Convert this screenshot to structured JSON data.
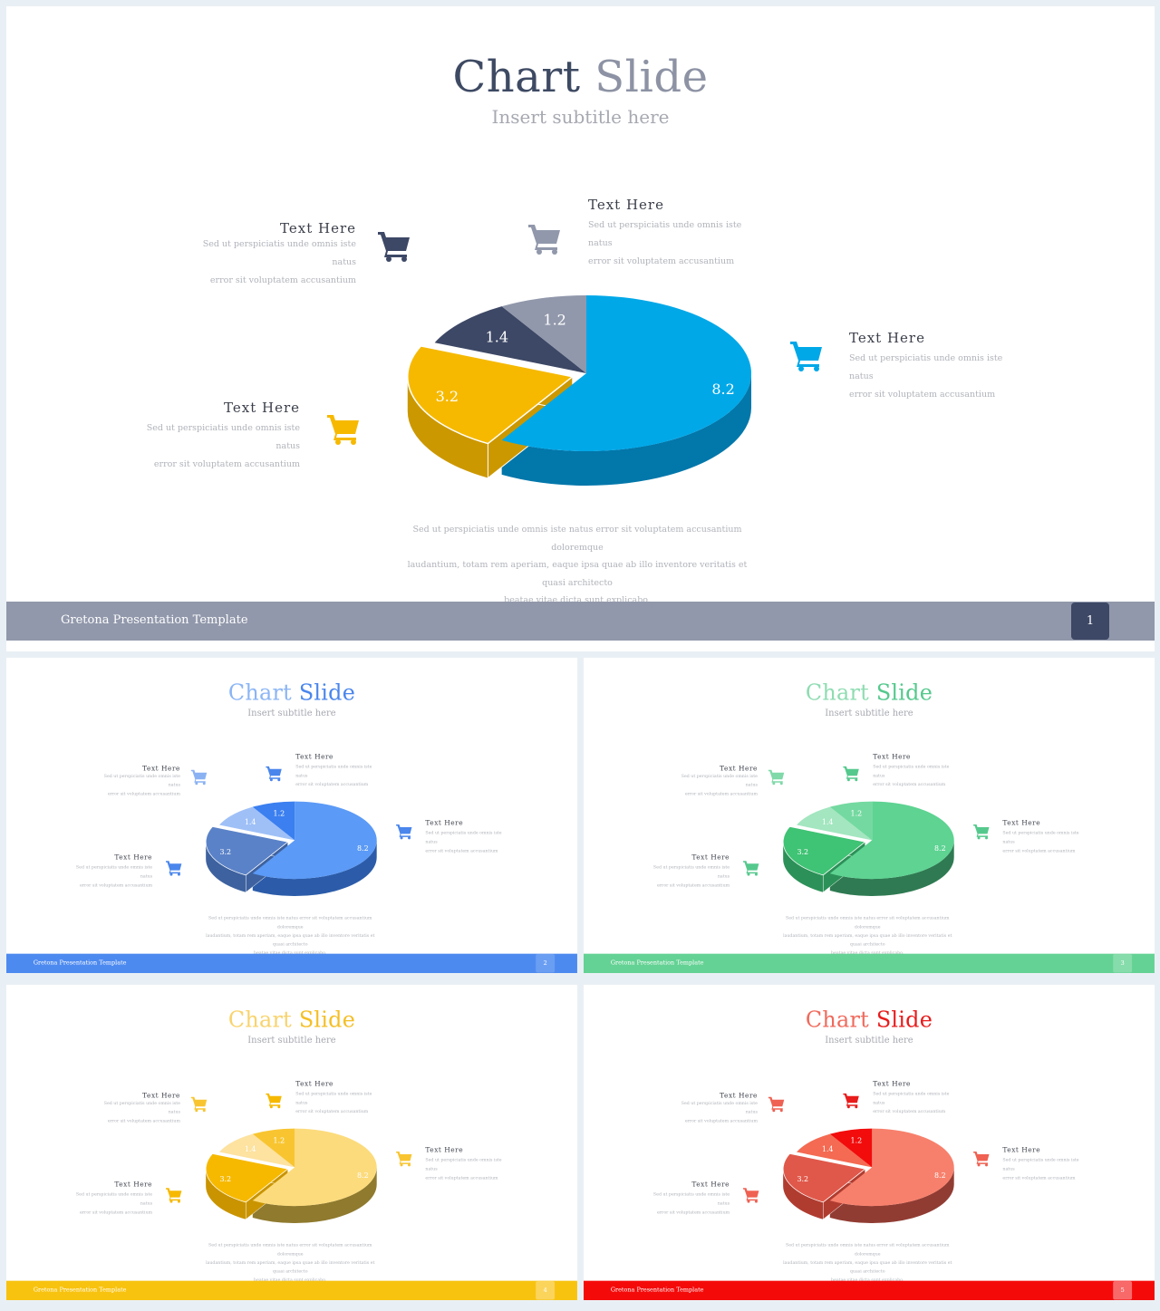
{
  "slides": [
    {
      "title_a": "Chart",
      "title_b": "Slide",
      "subtitle": "Insert subtitle here",
      "footer_text": "Gretona Presentation Template",
      "page": "1",
      "colors": {
        "title_a": "#3e4a63",
        "title_b": "#8d93a4",
        "footer": "#9198ab",
        "pagebox": "#3d4866",
        "a": "#00a8e8",
        "a_side": "#0277aa",
        "b": "#f6b900",
        "b_side": "#cc9800",
        "c": "#3d4866",
        "c_side": "#262d42",
        "d": "#9198ab",
        "d_side": "#6d7284",
        "cart1": "#3d4866",
        "cart2": "#9198ab",
        "cart3": "#00a8e8",
        "cart4": "#f6b900"
      }
    },
    {
      "title_a": "Chart",
      "title_b": "Slide",
      "subtitle": "Insert subtitle here",
      "footer_text": "Gretona Presentation Template",
      "page": "2",
      "colors": {
        "title_a": "#8bb5f5",
        "title_b": "#4a86ec",
        "footer": "#4d8af0",
        "pagebox": "#6a9ef2",
        "a": "#5b9af6",
        "a_side": "#2c5ca9",
        "b": "#5a82c8",
        "b_side": "#3e629f",
        "c": "#9fc0f7",
        "c_side": "#5f84c4",
        "d": "#3b7ff0",
        "d_side": "#2958a8",
        "cart1": "#8ab2f3",
        "cart2": "#4a86ec",
        "cart3": "#4a86ec",
        "cart4": "#4a86ec"
      }
    },
    {
      "title_a": "Chart",
      "title_b": "Slide",
      "subtitle": "Insert subtitle here",
      "footer_text": "Gretona Presentation Template",
      "page": "3",
      "colors": {
        "title_a": "#8fdcb2",
        "title_b": "#55c98d",
        "footer": "#64d294",
        "pagebox": "#86dcab",
        "a": "#5ed392",
        "a_side": "#2f7a52",
        "b": "#3fc374",
        "b_side": "#2c9158",
        "c": "#a3e6c0",
        "c_side": "#6fb88e",
        "d": "#74d9a0",
        "d_side": "#4ea576",
        "cart1": "#7fd9a8",
        "cart2": "#55c98d",
        "cart3": "#55c98d",
        "cart4": "#55c98d"
      }
    },
    {
      "title_a": "Chart",
      "title_b": "Slide",
      "subtitle": "Insert subtitle here",
      "footer_text": "Gretona Presentation Template",
      "page": "4",
      "colors": {
        "title_a": "#f8d36d",
        "title_b": "#f4bf25",
        "footer": "#f8c30f",
        "pagebox": "#fbd45c",
        "a": "#fcdb7c",
        "a_side": "#8f7a2e",
        "b": "#f6b900",
        "b_side": "#c99400",
        "c": "#fde2a0",
        "c_side": "#d4b567",
        "d": "#f8c531",
        "d_side": "#c99d1d",
        "cart1": "#f8c531",
        "cart2": "#f6b900",
        "cart3": "#f8c531",
        "cart4": "#f6b900"
      }
    },
    {
      "title_a": "Chart",
      "title_b": "Slide",
      "subtitle": "Insert subtitle here",
      "footer_text": "Gretona Presentation Template",
      "page": "5",
      "colors": {
        "title_a": "#f06a5c",
        "title_b": "#e81c1c",
        "footer": "#f50a0a",
        "pagebox": "#f86a6a",
        "a": "#f7806c",
        "a_side": "#913c33",
        "b": "#e0584a",
        "b_side": "#b03c30",
        "c": "#f46a52",
        "c_side": "#c44d3c",
        "d": "#f20c0c",
        "d_side": "#b60808",
        "cart1": "#ef6152",
        "cart2": "#e81c1c",
        "cart3": "#ef6152",
        "cart4": "#ef6152"
      }
    }
  ],
  "callouts": [
    {
      "title": "Text  Here",
      "body1": "Sed ut perspiciatis unde omnis iste natus",
      "body2": "error sit voluptatem accusantium"
    },
    {
      "title": "Text  Here",
      "body1": "Sed ut perspiciatis unde omnis iste natus",
      "body2": "error sit voluptatem accusantium"
    },
    {
      "title": "Text  Here",
      "body1": "Sed ut perspiciatis unde omnis iste natus",
      "body2": "error sit voluptatem accusantium"
    },
    {
      "title": "Text  Here",
      "body1": "Sed ut perspiciatis unde omnis iste natus",
      "body2": "error sit voluptatem accusantium"
    }
  ],
  "paragraph": {
    "line1": "Sed ut perspiciatis unde omnis iste natus error sit voluptatem accusantium doloremque",
    "line2": "laudantium, totam rem aperiam, eaque ipsa quae ab illo inventore veritatis et quasi architecto",
    "line3": "beatae vitae dicta sunt explicabo."
  },
  "chart_data": {
    "type": "pie",
    "values": [
      8.2,
      3.2,
      1.4,
      1.2
    ],
    "labels": [
      "8.2",
      "3.2",
      "1.4",
      "1.2"
    ],
    "exploded_slice": "3.2"
  },
  "icons": {
    "cart": "shopping-cart-icon"
  }
}
